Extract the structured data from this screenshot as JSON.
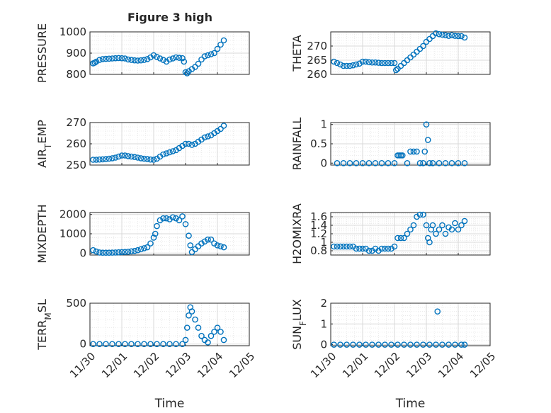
{
  "figure": {
    "title": "Figure 3 high"
  },
  "chart_data": [
    {
      "type": "scatter",
      "panel": "left-1",
      "title": "Figure 3 high",
      "ylabel": "PRESSURE",
      "ylabel_sub": "",
      "ylim": [
        800,
        1000
      ],
      "yticks": [
        "800",
        "900",
        "1000"
      ],
      "ytick_values": [
        800,
        900,
        1000
      ],
      "x": [
        0.1,
        0.15,
        0.2,
        0.3,
        0.4,
        0.5,
        0.6,
        0.7,
        0.8,
        0.9,
        1.0,
        1.1,
        1.2,
        1.3,
        1.4,
        1.5,
        1.6,
        1.7,
        1.8,
        1.9,
        2.0,
        2.1,
        2.2,
        2.3,
        2.4,
        2.5,
        2.6,
        2.7,
        2.8,
        2.9,
        2.95,
        3.0,
        3.05,
        3.1,
        3.2,
        3.3,
        3.4,
        3.5,
        3.6,
        3.7,
        3.8,
        3.9,
        4.0,
        4.1,
        4.2
      ],
      "y": [
        852,
        855,
        860,
        868,
        872,
        873,
        874,
        875,
        876,
        877,
        876,
        875,
        870,
        868,
        866,
        865,
        866,
        868,
        872,
        880,
        890,
        882,
        875,
        868,
        860,
        870,
        875,
        880,
        878,
        876,
        860,
        810,
        805,
        815,
        825,
        835,
        850,
        870,
        885,
        890,
        895,
        900,
        920,
        940,
        960
      ]
    },
    {
      "type": "scatter",
      "panel": "right-1",
      "ylabel": "THETA",
      "ylabel_sub": "",
      "ylim": [
        260,
        275
      ],
      "yticks": [
        "260",
        "265",
        "270"
      ],
      "ytick_values": [
        260,
        265,
        270
      ],
      "x": [
        0.1,
        0.2,
        0.3,
        0.4,
        0.5,
        0.6,
        0.7,
        0.8,
        0.9,
        1.0,
        1.1,
        1.2,
        1.3,
        1.4,
        1.5,
        1.6,
        1.7,
        1.8,
        1.9,
        2.0,
        2.05,
        2.1,
        2.2,
        2.3,
        2.4,
        2.5,
        2.6,
        2.7,
        2.8,
        2.9,
        3.0,
        3.1,
        3.2,
        3.3,
        3.4,
        3.5,
        3.6,
        3.7,
        3.8,
        3.9,
        4.0,
        4.1,
        4.2
      ],
      "y": [
        264.5,
        264,
        263.5,
        263,
        263,
        263,
        263.2,
        263.5,
        263.8,
        264.5,
        264.5,
        264.3,
        264.2,
        264.2,
        264.1,
        264,
        264,
        264,
        264,
        264,
        261.5,
        262,
        263,
        264,
        265,
        266,
        267,
        268,
        269,
        270,
        271.5,
        272.5,
        273.5,
        274.5,
        274.2,
        274,
        273.8,
        273.6,
        273.8,
        273.6,
        273.5,
        273.5,
        273
      ]
    },
    {
      "type": "scatter",
      "panel": "left-2",
      "ylabel": "AIR",
      "ylabel_sub": "T",
      "ylabel_rest": "EMP",
      "ylim": [
        250,
        270
      ],
      "yticks": [
        "250",
        "260",
        "270"
      ],
      "ytick_values": [
        250,
        260,
        270
      ],
      "x": [
        0.1,
        0.2,
        0.3,
        0.4,
        0.5,
        0.6,
        0.7,
        0.8,
        0.9,
        1.0,
        1.1,
        1.2,
        1.3,
        1.4,
        1.5,
        1.6,
        1.7,
        1.8,
        1.9,
        2.0,
        2.1,
        2.2,
        2.3,
        2.4,
        2.5,
        2.6,
        2.7,
        2.8,
        2.9,
        3.0,
        3.1,
        3.2,
        3.3,
        3.4,
        3.5,
        3.6,
        3.7,
        3.8,
        3.9,
        4.0,
        4.1,
        4.2
      ],
      "y": [
        252.5,
        252.5,
        252.6,
        252.7,
        252.8,
        253,
        253.2,
        253.5,
        254,
        254.5,
        254.5,
        254.2,
        254,
        253.8,
        253.5,
        253.2,
        253,
        252.8,
        252.6,
        252.5,
        253,
        254,
        255,
        255.5,
        256,
        256.5,
        257,
        258,
        259,
        260,
        260,
        259.5,
        260,
        261,
        262,
        263,
        263.5,
        264,
        265,
        266,
        267,
        268.5
      ]
    },
    {
      "type": "scatter",
      "panel": "right-2",
      "ylabel": "RAINFALL",
      "ylabel_sub": "",
      "ylim": [
        -0.05,
        1.05
      ],
      "yticks": [
        "0",
        "0.5",
        "1"
      ],
      "ytick_values": [
        0,
        0.5,
        1
      ],
      "x": [
        0.2,
        0.4,
        0.6,
        0.8,
        1.0,
        1.2,
        1.4,
        1.6,
        1.8,
        2.0,
        2.1,
        2.15,
        2.2,
        2.25,
        2.4,
        2.5,
        2.6,
        2.7,
        2.8,
        2.9,
        2.95,
        3.0,
        3.05,
        3.1,
        3.2,
        3.4,
        3.6,
        3.8,
        4.0,
        4.2
      ],
      "y": [
        0,
        0,
        0,
        0,
        0,
        0,
        0,
        0,
        0,
        0,
        0.2,
        0.2,
        0.2,
        0.2,
        0,
        0.3,
        0.3,
        0.3,
        0,
        0,
        0.3,
        1.0,
        0.6,
        0,
        0,
        0,
        0,
        0,
        0,
        0
      ]
    },
    {
      "type": "scatter",
      "panel": "left-3",
      "ylabel": "MIXDEPTH",
      "ylabel_sub": "",
      "ylim": [
        -100,
        2100
      ],
      "yticks": [
        "0",
        "1000",
        "2000"
      ],
      "ytick_values": [
        0,
        1000,
        2000
      ],
      "x": [
        0.1,
        0.2,
        0.3,
        0.4,
        0.5,
        0.6,
        0.7,
        0.8,
        0.9,
        1.0,
        1.1,
        1.2,
        1.3,
        1.4,
        1.5,
        1.6,
        1.7,
        1.8,
        1.9,
        2.0,
        2.05,
        2.1,
        2.2,
        2.3,
        2.4,
        2.5,
        2.6,
        2.7,
        2.8,
        2.9,
        3.0,
        3.1,
        3.15,
        3.2,
        3.3,
        3.4,
        3.5,
        3.6,
        3.7,
        3.8,
        3.9,
        4.0,
        4.1,
        4.2
      ],
      "y": [
        150,
        80,
        30,
        20,
        20,
        20,
        25,
        30,
        40,
        50,
        60,
        70,
        90,
        110,
        150,
        200,
        250,
        300,
        500,
        800,
        1000,
        1400,
        1700,
        1800,
        1800,
        1750,
        1850,
        1800,
        1700,
        1900,
        1500,
        900,
        400,
        50,
        200,
        350,
        500,
        600,
        700,
        700,
        500,
        400,
        350,
        300
      ]
    },
    {
      "type": "scatter",
      "panel": "right-3",
      "ylabel": "H2OMIXRA",
      "ylabel_sub": "",
      "ylim": [
        0.7,
        1.7
      ],
      "yticks": [
        "0.8",
        "1",
        "1.2",
        "1.4",
        "1.6"
      ],
      "ytick_values": [
        0.8,
        1.0,
        1.2,
        1.4,
        1.6
      ],
      "x": [
        0.1,
        0.2,
        0.3,
        0.4,
        0.5,
        0.6,
        0.7,
        0.8,
        0.9,
        1.0,
        1.1,
        1.2,
        1.3,
        1.4,
        1.5,
        1.6,
        1.7,
        1.8,
        1.9,
        2.0,
        2.1,
        2.2,
        2.3,
        2.4,
        2.5,
        2.6,
        2.7,
        2.8,
        2.9,
        3.0,
        3.05,
        3.1,
        3.15,
        3.2,
        3.3,
        3.4,
        3.5,
        3.6,
        3.7,
        3.8,
        3.9,
        4.0,
        4.1,
        4.2
      ],
      "y": [
        0.9,
        0.9,
        0.9,
        0.9,
        0.9,
        0.9,
        0.9,
        0.85,
        0.85,
        0.85,
        0.85,
        0.8,
        0.8,
        0.85,
        0.8,
        0.85,
        0.85,
        0.85,
        0.85,
        0.9,
        1.1,
        1.1,
        1.1,
        1.2,
        1.3,
        1.4,
        1.6,
        1.65,
        1.65,
        1.4,
        1.1,
        1.0,
        1.3,
        1.4,
        1.2,
        1.3,
        1.4,
        1.2,
        1.35,
        1.3,
        1.45,
        1.3,
        1.4,
        1.5
      ]
    },
    {
      "type": "scatter",
      "panel": "left-4",
      "ylabel": "TERR",
      "ylabel_sub": "M",
      "ylabel_rest": "SL",
      "ylim": [
        -20,
        500
      ],
      "yticks": [
        "0",
        "500"
      ],
      "ytick_values": [
        0,
        500
      ],
      "x": [
        0.1,
        0.3,
        0.5,
        0.7,
        0.9,
        1.1,
        1.3,
        1.5,
        1.7,
        1.9,
        2.1,
        2.3,
        2.5,
        2.7,
        2.9,
        3.0,
        3.05,
        3.1,
        3.15,
        3.2,
        3.3,
        3.4,
        3.5,
        3.6,
        3.7,
        3.8,
        3.9,
        4.0,
        4.1,
        4.2
      ],
      "y": [
        0,
        0,
        0,
        0,
        0,
        0,
        0,
        0,
        0,
        0,
        0,
        0,
        0,
        0,
        0,
        50,
        200,
        350,
        450,
        400,
        300,
        200,
        100,
        50,
        20,
        100,
        150,
        200,
        150,
        50
      ]
    },
    {
      "type": "scatter",
      "panel": "right-4",
      "ylabel": "SUN",
      "ylabel_sub": "F",
      "ylabel_rest": "LUX",
      "ylim": [
        -0.05,
        2.0
      ],
      "yticks": [
        "0",
        "1",
        "2"
      ],
      "ytick_values": [
        0,
        1,
        2
      ],
      "x": [
        0.1,
        0.3,
        0.5,
        0.7,
        0.9,
        1.1,
        1.3,
        1.5,
        1.7,
        1.9,
        2.1,
        2.3,
        2.5,
        2.7,
        2.9,
        3.1,
        3.3,
        3.35,
        3.5,
        3.7,
        3.9,
        4.1,
        4.2
      ],
      "y": [
        0,
        0,
        0,
        0,
        0,
        0,
        0,
        0,
        0,
        0,
        0,
        0,
        0,
        0,
        0,
        0,
        0,
        1.6,
        0,
        0,
        0,
        0,
        0
      ]
    }
  ],
  "x_axis": {
    "xlabel": "Time",
    "xlim": [
      0,
      5
    ],
    "ticks": [
      "11/30",
      "12/01",
      "12/02",
      "12/03",
      "12/04",
      "12/05"
    ],
    "tick_values": [
      0,
      1,
      2,
      3,
      4,
      5
    ]
  },
  "style": {
    "marker_color": "#0072BD",
    "axis_color": "#262626",
    "grid_color": "#d9d9d9"
  }
}
